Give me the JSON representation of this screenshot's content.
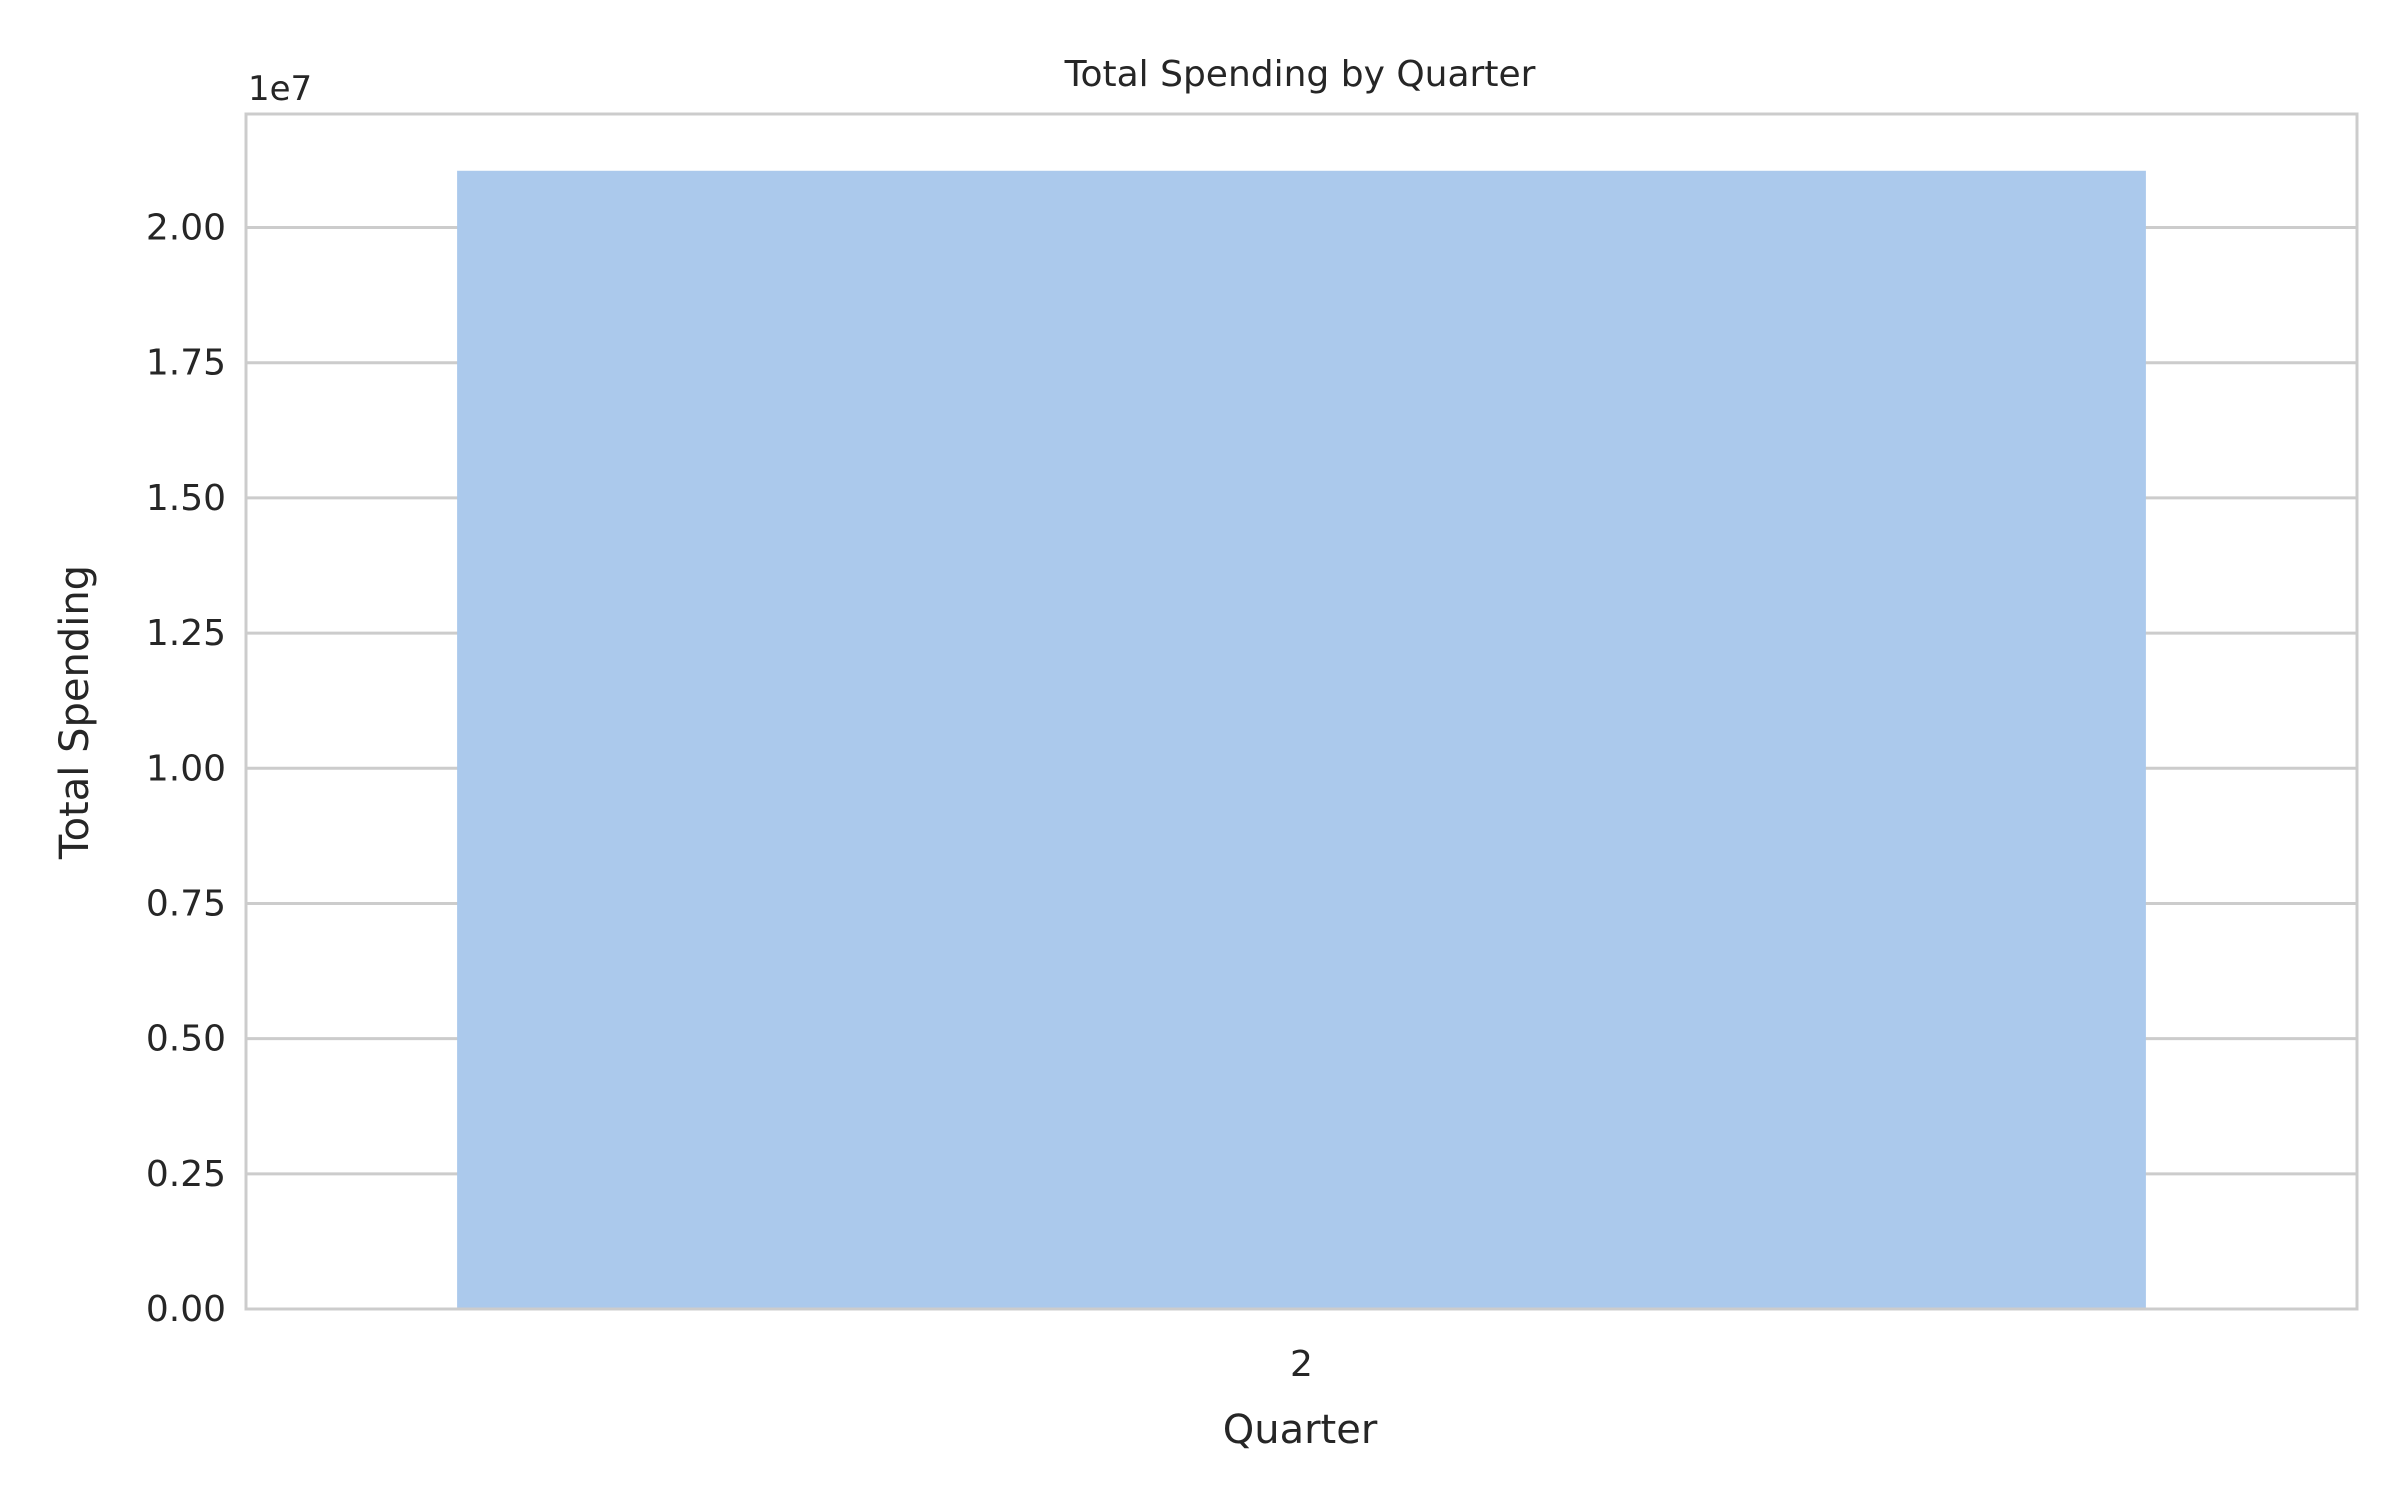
{
  "chart_data": {
    "type": "bar",
    "title": "Total Spending by Quarter",
    "xlabel": "Quarter",
    "ylabel": "Total Spending",
    "categories": [
      "2"
    ],
    "values": [
      21050000
    ],
    "ylim": [
      0,
      22100000
    ],
    "offset_label": "1e7",
    "y_ticks": [
      0,
      2500000,
      5000000,
      7500000,
      10000000,
      12500000,
      15000000,
      17500000,
      20000000
    ],
    "y_tick_labels": [
      "0.00",
      "0.25",
      "0.50",
      "0.75",
      "1.00",
      "1.25",
      "1.50",
      "1.75",
      "2.00"
    ],
    "grid": true,
    "legend": "none",
    "colors": {
      "bar": "#abc9ec",
      "grid": "#cccccc",
      "spine": "#cccccc",
      "text": "#262626"
    }
  }
}
